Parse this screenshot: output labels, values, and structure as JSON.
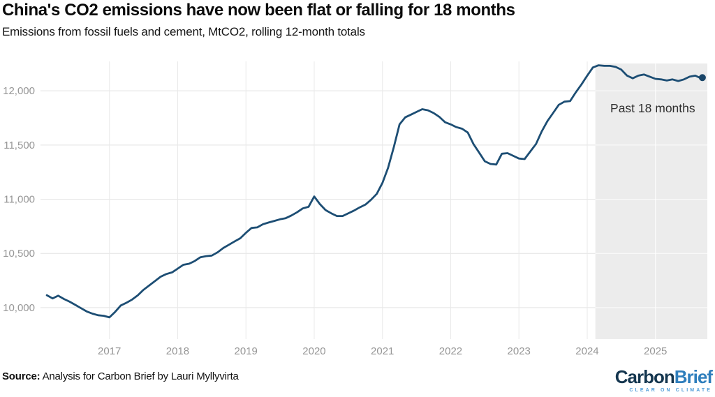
{
  "header": {
    "title": "China's CO2 emissions have now been flat or falling for 18 months",
    "subtitle": "Emissions from fossil fuels and cement, MtCO2, rolling 12-month totals"
  },
  "footer": {
    "source_label": "Source:",
    "source_text": "Analysis for Carbon Brief by Lauri Myllyvirta"
  },
  "logo": {
    "part1": "Carbon",
    "part2": "Brief",
    "tagline": "CLEAR ON CLIMATE"
  },
  "chart_data": {
    "type": "line",
    "title": "China's CO2 emissions have now been flat or falling for 18 months",
    "subtitle": "Emissions from fossil fuels and cement, MtCO2, rolling 12-month totals",
    "xlabel": "",
    "ylabel": "MtCO2, rolling 12-month totals",
    "grid": true,
    "xlim": [
      2015.99,
      2025.76
    ],
    "ylim": [
      9710,
      12271
    ],
    "x_ticks": [
      2017,
      2018,
      2019,
      2020,
      2021,
      2022,
      2023,
      2024,
      2025
    ],
    "x_tick_labels": [
      "2017",
      "2018",
      "2019",
      "2020",
      "2021",
      "2022",
      "2023",
      "2024",
      "2025"
    ],
    "y_ticks": [
      10000,
      10500,
      11000,
      11500,
      12000
    ],
    "y_tick_labels": [
      "10,000",
      "10,500",
      "11,000",
      "11,500",
      "12,000"
    ],
    "highlight_region": {
      "from": 2024.12,
      "to": 2025.76,
      "label": "Past 18 months"
    },
    "colors": {
      "line": "#1d4e74",
      "dot": "#1a4568",
      "grid_h": "#e3e3e3",
      "grid_v": "#e9e9e9",
      "grid_in_highlight": "#ffffff",
      "highlight": "#ececec",
      "tick_text": "#969696",
      "annotation_text": "#2f2f2f"
    },
    "series": [
      {
        "name": "China CO2 emissions (MtCO2, rolling 12-month total)",
        "points": [
          [
            2016.083,
            10115
          ],
          [
            2016.167,
            10085
          ],
          [
            2016.25,
            10110
          ],
          [
            2016.333,
            10080
          ],
          [
            2016.417,
            10055
          ],
          [
            2016.5,
            10025
          ],
          [
            2016.583,
            9995
          ],
          [
            2016.667,
            9965
          ],
          [
            2016.75,
            9945
          ],
          [
            2016.833,
            9930
          ],
          [
            2016.917,
            9925
          ],
          [
            2017,
            9910
          ],
          [
            2017.083,
            9960
          ],
          [
            2017.167,
            10020
          ],
          [
            2017.25,
            10045
          ],
          [
            2017.333,
            10075
          ],
          [
            2017.417,
            10115
          ],
          [
            2017.5,
            10165
          ],
          [
            2017.583,
            10205
          ],
          [
            2017.667,
            10245
          ],
          [
            2017.75,
            10285
          ],
          [
            2017.833,
            10310
          ],
          [
            2017.917,
            10325
          ],
          [
            2018,
            10360
          ],
          [
            2018.083,
            10395
          ],
          [
            2018.167,
            10405
          ],
          [
            2018.25,
            10430
          ],
          [
            2018.333,
            10465
          ],
          [
            2018.417,
            10475
          ],
          [
            2018.5,
            10480
          ],
          [
            2018.583,
            10510
          ],
          [
            2018.667,
            10550
          ],
          [
            2018.75,
            10580
          ],
          [
            2018.833,
            10610
          ],
          [
            2018.917,
            10640
          ],
          [
            2019,
            10690
          ],
          [
            2019.083,
            10735
          ],
          [
            2019.167,
            10740
          ],
          [
            2019.25,
            10770
          ],
          [
            2019.333,
            10785
          ],
          [
            2019.417,
            10800
          ],
          [
            2019.5,
            10815
          ],
          [
            2019.583,
            10825
          ],
          [
            2019.667,
            10850
          ],
          [
            2019.75,
            10880
          ],
          [
            2019.833,
            10915
          ],
          [
            2019.917,
            10930
          ],
          [
            2020,
            11025
          ],
          [
            2020.083,
            10955
          ],
          [
            2020.167,
            10900
          ],
          [
            2020.25,
            10870
          ],
          [
            2020.333,
            10845
          ],
          [
            2020.417,
            10845
          ],
          [
            2020.5,
            10870
          ],
          [
            2020.583,
            10895
          ],
          [
            2020.667,
            10925
          ],
          [
            2020.75,
            10950
          ],
          [
            2020.833,
            10995
          ],
          [
            2020.917,
            11050
          ],
          [
            2021,
            11150
          ],
          [
            2021.083,
            11290
          ],
          [
            2021.167,
            11480
          ],
          [
            2021.25,
            11690
          ],
          [
            2021.333,
            11755
          ],
          [
            2021.417,
            11780
          ],
          [
            2021.5,
            11805
          ],
          [
            2021.583,
            11830
          ],
          [
            2021.667,
            11820
          ],
          [
            2021.75,
            11795
          ],
          [
            2021.833,
            11760
          ],
          [
            2021.917,
            11710
          ],
          [
            2022,
            11690
          ],
          [
            2022.083,
            11665
          ],
          [
            2022.167,
            11650
          ],
          [
            2022.25,
            11615
          ],
          [
            2022.333,
            11510
          ],
          [
            2022.417,
            11430
          ],
          [
            2022.5,
            11350
          ],
          [
            2022.583,
            11325
          ],
          [
            2022.667,
            11320
          ],
          [
            2022.75,
            11420
          ],
          [
            2022.833,
            11425
          ],
          [
            2022.917,
            11400
          ],
          [
            2023,
            11375
          ],
          [
            2023.083,
            11370
          ],
          [
            2023.167,
            11440
          ],
          [
            2023.25,
            11510
          ],
          [
            2023.333,
            11625
          ],
          [
            2023.417,
            11720
          ],
          [
            2023.5,
            11795
          ],
          [
            2023.583,
            11870
          ],
          [
            2023.667,
            11900
          ],
          [
            2023.75,
            11905
          ],
          [
            2023.833,
            11985
          ],
          [
            2023.917,
            12060
          ],
          [
            2024,
            12140
          ],
          [
            2024.083,
            12215
          ],
          [
            2024.167,
            12235
          ],
          [
            2024.25,
            12230
          ],
          [
            2024.333,
            12230
          ],
          [
            2024.417,
            12220
          ],
          [
            2024.5,
            12195
          ],
          [
            2024.583,
            12140
          ],
          [
            2024.667,
            12115
          ],
          [
            2024.75,
            12140
          ],
          [
            2024.833,
            12150
          ],
          [
            2024.917,
            12130
          ],
          [
            2025,
            12110
          ],
          [
            2025.083,
            12105
          ],
          [
            2025.167,
            12095
          ],
          [
            2025.25,
            12105
          ],
          [
            2025.333,
            12090
          ],
          [
            2025.417,
            12105
          ],
          [
            2025.5,
            12130
          ],
          [
            2025.583,
            12140
          ],
          [
            2025.667,
            12115
          ]
        ]
      }
    ],
    "legend": null,
    "end_dot": true
  }
}
